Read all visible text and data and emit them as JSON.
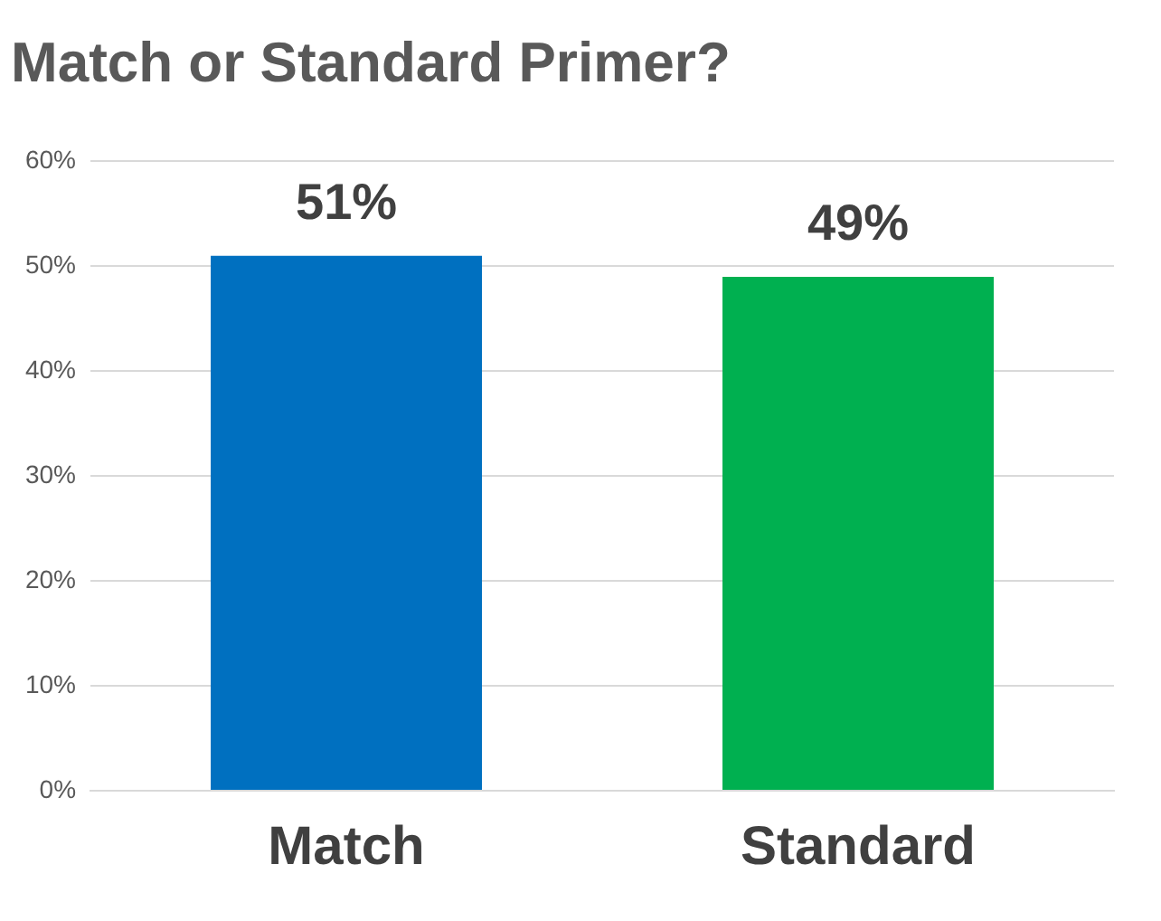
{
  "chart_data": {
    "type": "bar",
    "title": "Match or Standard Primer?",
    "categories": [
      "Match",
      "Standard"
    ],
    "values": [
      51,
      49
    ],
    "colors": [
      "#0070c0",
      "#00b050"
    ],
    "ylim": [
      0,
      60
    ],
    "yticks": [
      {
        "value": 0,
        "label": "0%"
      },
      {
        "value": 10,
        "label": "10%"
      },
      {
        "value": 20,
        "label": "20%"
      },
      {
        "value": 30,
        "label": "30%"
      },
      {
        "value": 40,
        "label": "40%"
      },
      {
        "value": 50,
        "label": "50%"
      },
      {
        "value": 60,
        "label": "60%"
      }
    ],
    "value_labels": [
      "51%",
      "49%"
    ],
    "grid": "y",
    "legend": false
  }
}
